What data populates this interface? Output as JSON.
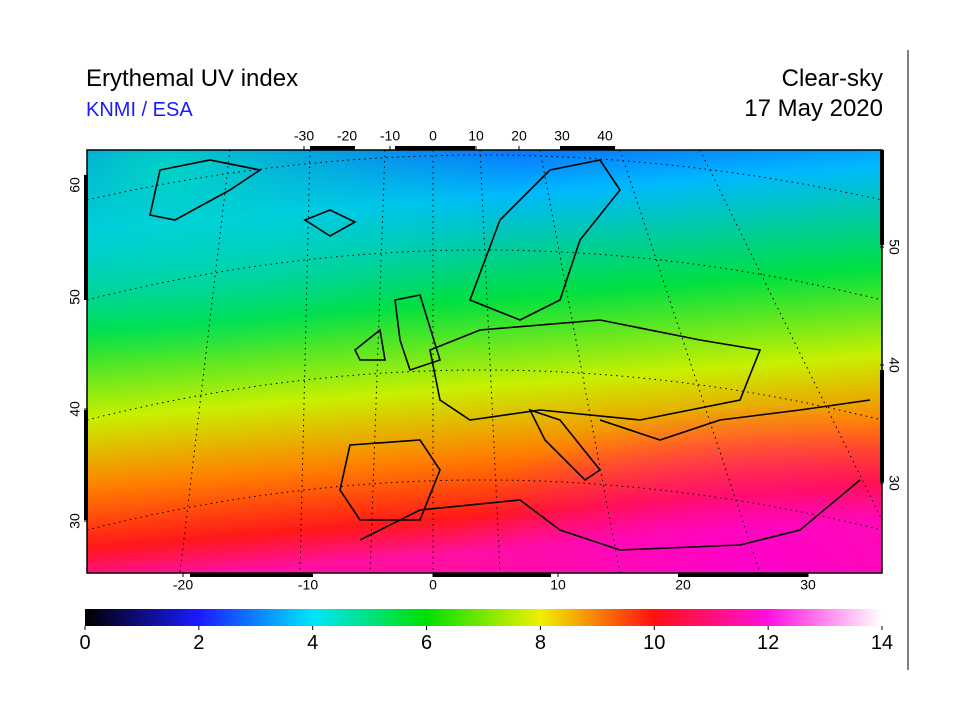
{
  "header": {
    "title": "Erythemal UV index",
    "source": "KNMI / ESA",
    "condition": "Clear-sky",
    "date": "17 May 2020"
  },
  "map": {
    "top_lon_ticks": [
      -30,
      -20,
      -10,
      0,
      10,
      20,
      30,
      40
    ],
    "bottom_lon_ticks": [
      -20,
      -10,
      0,
      10,
      20,
      30
    ],
    "left_lat_ticks": [
      60,
      50,
      40,
      30
    ],
    "right_lat_ticks": [
      50,
      40,
      30
    ]
  },
  "colorbar": {
    "lim": [
      0,
      14
    ],
    "ticks": [
      0,
      2,
      4,
      6,
      8,
      10,
      12,
      14
    ],
    "colors": [
      "#000000",
      "#1a1aff",
      "#00e5ff",
      "#00e000",
      "#f0f000",
      "#ff1010",
      "#ff10e0",
      "#ffffff"
    ]
  }
}
